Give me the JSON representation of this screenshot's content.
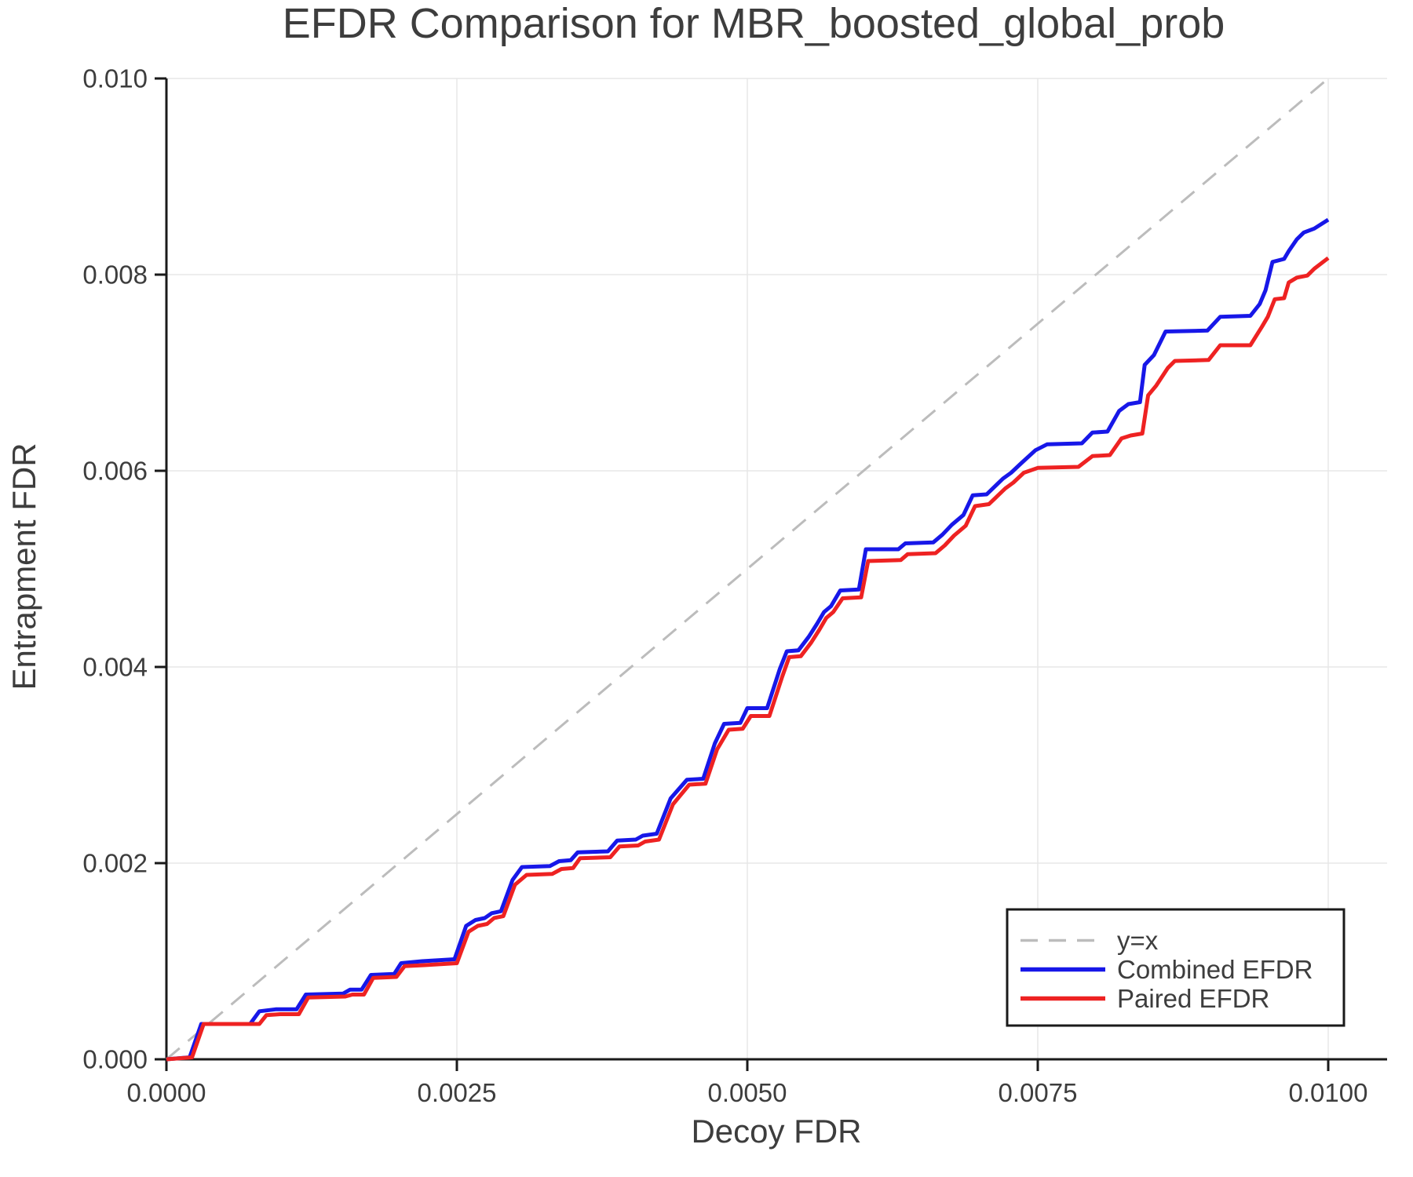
{
  "chart_data": {
    "type": "line",
    "title": "EFDR Comparison for MBR_boosted_global_prob",
    "xlabel": "Decoy FDR",
    "ylabel": "Entrapment FDR",
    "xlim": [
      0.0,
      0.0105
    ],
    "ylim": [
      0.0,
      0.01
    ],
    "grid": true,
    "legend_position": "lower right",
    "text_color": "#3d3d3d",
    "axis_color": "#1a1a1a",
    "grid_color": "#e7e7e7",
    "x_ticks": [
      {
        "v": 0.0,
        "label": "0.0000"
      },
      {
        "v": 0.0025,
        "label": "0.0025"
      },
      {
        "v": 0.005,
        "label": "0.0050"
      },
      {
        "v": 0.0075,
        "label": "0.0075"
      },
      {
        "v": 0.01,
        "label": "0.0100"
      }
    ],
    "y_ticks": [
      {
        "v": 0.0,
        "label": "0.000"
      },
      {
        "v": 0.002,
        "label": "0.002"
      },
      {
        "v": 0.004,
        "label": "0.004"
      },
      {
        "v": 0.006,
        "label": "0.006"
      },
      {
        "v": 0.008,
        "label": "0.008"
      },
      {
        "v": 0.01,
        "label": "0.010"
      }
    ],
    "series": [
      {
        "name": "y=x",
        "color": "#bcbcbc",
        "dashed": true,
        "width": 3,
        "points": [
          [
            0.0,
            0.0
          ],
          [
            0.01,
            0.01
          ]
        ]
      },
      {
        "name": "Combined EFDR",
        "color": "#1717e8",
        "dashed": false,
        "width": 5,
        "points": [
          [
            0.0,
            0.0
          ],
          [
            0.0002,
            2e-05
          ],
          [
            0.0003,
            0.00036
          ],
          [
            0.00072,
            0.00036
          ],
          [
            0.0008,
            0.00049
          ],
          [
            0.00094,
            0.00051
          ],
          [
            0.00112,
            0.00051
          ],
          [
            0.0012,
            0.00066
          ],
          [
            0.00152,
            0.00067
          ],
          [
            0.00158,
            0.00071
          ],
          [
            0.00168,
            0.00071
          ],
          [
            0.00176,
            0.00086
          ],
          [
            0.00196,
            0.00087
          ],
          [
            0.00202,
            0.00098
          ],
          [
            0.0022,
            0.001
          ],
          [
            0.00248,
            0.00102
          ],
          [
            0.00258,
            0.00136
          ],
          [
            0.00266,
            0.00142
          ],
          [
            0.00274,
            0.00144
          ],
          [
            0.0028,
            0.00149
          ],
          [
            0.00288,
            0.00151
          ],
          [
            0.00298,
            0.00183
          ],
          [
            0.00306,
            0.00196
          ],
          [
            0.0033,
            0.00197
          ],
          [
            0.00338,
            0.00202
          ],
          [
            0.00348,
            0.00203
          ],
          [
            0.00354,
            0.00211
          ],
          [
            0.0038,
            0.00212
          ],
          [
            0.00388,
            0.00223
          ],
          [
            0.00404,
            0.00224
          ],
          [
            0.0041,
            0.00228
          ],
          [
            0.00422,
            0.0023
          ],
          [
            0.00434,
            0.00266
          ],
          [
            0.00448,
            0.00285
          ],
          [
            0.00462,
            0.00286
          ],
          [
            0.00472,
            0.00322
          ],
          [
            0.0048,
            0.00342
          ],
          [
            0.00494,
            0.00343
          ],
          [
            0.005,
            0.00358
          ],
          [
            0.00517,
            0.00358
          ],
          [
            0.00528,
            0.00398
          ],
          [
            0.00534,
            0.00416
          ],
          [
            0.00544,
            0.00417
          ],
          [
            0.00553,
            0.00431
          ],
          [
            0.0056,
            0.00444
          ],
          [
            0.00566,
            0.00456
          ],
          [
            0.00572,
            0.00462
          ],
          [
            0.0058,
            0.00478
          ],
          [
            0.00596,
            0.00479
          ],
          [
            0.00602,
            0.0052
          ],
          [
            0.0063,
            0.0052
          ],
          [
            0.00636,
            0.00526
          ],
          [
            0.0066,
            0.00527
          ],
          [
            0.00668,
            0.00535
          ],
          [
            0.00676,
            0.00545
          ],
          [
            0.00686,
            0.00555
          ],
          [
            0.00694,
            0.00575
          ],
          [
            0.00706,
            0.00576
          ],
          [
            0.0072,
            0.00592
          ],
          [
            0.00727,
            0.00598
          ],
          [
            0.00736,
            0.00608
          ],
          [
            0.00748,
            0.00621
          ],
          [
            0.00758,
            0.00627
          ],
          [
            0.00788,
            0.00628
          ],
          [
            0.00797,
            0.00639
          ],
          [
            0.0081,
            0.0064
          ],
          [
            0.0082,
            0.00661
          ],
          [
            0.00828,
            0.00668
          ],
          [
            0.00838,
            0.0067
          ],
          [
            0.00842,
            0.00708
          ],
          [
            0.0085,
            0.00718
          ],
          [
            0.0086,
            0.00742
          ],
          [
            0.00896,
            0.00743
          ],
          [
            0.00907,
            0.00757
          ],
          [
            0.00933,
            0.00758
          ],
          [
            0.00941,
            0.0077
          ],
          [
            0.00946,
            0.00784
          ],
          [
            0.00952,
            0.00813
          ],
          [
            0.00962,
            0.00816
          ],
          [
            0.00966,
            0.00824
          ],
          [
            0.00973,
            0.00836
          ],
          [
            0.00979,
            0.00843
          ],
          [
            0.00988,
            0.00847
          ],
          [
            0.01,
            0.00856
          ]
        ]
      },
      {
        "name": "Paired EFDR",
        "color": "#ee2222",
        "dashed": false,
        "width": 5,
        "points": [
          [
            0.0,
            0.0
          ],
          [
            0.00022,
            2e-05
          ],
          [
            0.00032,
            0.00036
          ],
          [
            0.0008,
            0.00036
          ],
          [
            0.00086,
            0.00045
          ],
          [
            0.00098,
            0.00046
          ],
          [
            0.00114,
            0.00046
          ],
          [
            0.00122,
            0.00063
          ],
          [
            0.00154,
            0.00064
          ],
          [
            0.0016,
            0.00066
          ],
          [
            0.0017,
            0.00066
          ],
          [
            0.00178,
            0.00083
          ],
          [
            0.00198,
            0.00084
          ],
          [
            0.00205,
            0.00095
          ],
          [
            0.00222,
            0.00096
          ],
          [
            0.0025,
            0.00098
          ],
          [
            0.0026,
            0.0013
          ],
          [
            0.00268,
            0.00136
          ],
          [
            0.00276,
            0.00138
          ],
          [
            0.00282,
            0.00144
          ],
          [
            0.0029,
            0.00146
          ],
          [
            0.003,
            0.00178
          ],
          [
            0.0031,
            0.00188
          ],
          [
            0.00332,
            0.00189
          ],
          [
            0.0034,
            0.00194
          ],
          [
            0.0035,
            0.00195
          ],
          [
            0.00356,
            0.00205
          ],
          [
            0.00382,
            0.00206
          ],
          [
            0.0039,
            0.00217
          ],
          [
            0.00406,
            0.00218
          ],
          [
            0.00412,
            0.00222
          ],
          [
            0.00424,
            0.00224
          ],
          [
            0.00436,
            0.0026
          ],
          [
            0.0045,
            0.0028
          ],
          [
            0.00464,
            0.00281
          ],
          [
            0.00474,
            0.00316
          ],
          [
            0.00484,
            0.00336
          ],
          [
            0.00496,
            0.00337
          ],
          [
            0.00503,
            0.0035
          ],
          [
            0.00519,
            0.0035
          ],
          [
            0.0053,
            0.0039
          ],
          [
            0.00536,
            0.0041
          ],
          [
            0.00546,
            0.00411
          ],
          [
            0.00555,
            0.00425
          ],
          [
            0.00562,
            0.00438
          ],
          [
            0.00568,
            0.0045
          ],
          [
            0.00574,
            0.00456
          ],
          [
            0.00582,
            0.0047
          ],
          [
            0.00598,
            0.00471
          ],
          [
            0.00604,
            0.00508
          ],
          [
            0.00632,
            0.00509
          ],
          [
            0.00638,
            0.00515
          ],
          [
            0.00662,
            0.00516
          ],
          [
            0.0067,
            0.00524
          ],
          [
            0.00678,
            0.00534
          ],
          [
            0.00688,
            0.00544
          ],
          [
            0.00696,
            0.00564
          ],
          [
            0.00708,
            0.00566
          ],
          [
            0.00722,
            0.00582
          ],
          [
            0.00729,
            0.00588
          ],
          [
            0.00738,
            0.00598
          ],
          [
            0.0075,
            0.00603
          ],
          [
            0.00785,
            0.00604
          ],
          [
            0.00797,
            0.00615
          ],
          [
            0.00812,
            0.00616
          ],
          [
            0.00822,
            0.00633
          ],
          [
            0.0083,
            0.00636
          ],
          [
            0.0084,
            0.00638
          ],
          [
            0.00845,
            0.00677
          ],
          [
            0.00852,
            0.00687
          ],
          [
            0.00862,
            0.00705
          ],
          [
            0.00868,
            0.00712
          ],
          [
            0.00897,
            0.00713
          ],
          [
            0.00907,
            0.00728
          ],
          [
            0.00933,
            0.00728
          ],
          [
            0.00943,
            0.00747
          ],
          [
            0.00948,
            0.00757
          ],
          [
            0.00954,
            0.00775
          ],
          [
            0.00962,
            0.00776
          ],
          [
            0.00966,
            0.00792
          ],
          [
            0.00973,
            0.00797
          ],
          [
            0.00982,
            0.00799
          ],
          [
            0.00988,
            0.00806
          ],
          [
            0.01,
            0.00817
          ]
        ]
      }
    ]
  }
}
